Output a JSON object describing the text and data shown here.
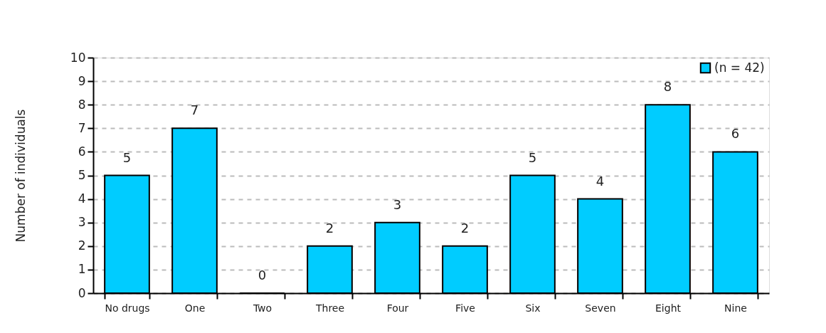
{
  "chart_data": {
    "type": "bar",
    "ylabel": "Number of individuals",
    "categories": [
      "No drugs",
      "One",
      "Two",
      "Three",
      "Four",
      "Five",
      "Six",
      "Seven",
      "Eight",
      "Nine"
    ],
    "series": [
      {
        "name": "(n = 42)",
        "color": "#00ccff",
        "values": [
          5,
          7,
          0,
          2,
          3,
          2,
          5,
          4,
          8,
          6
        ]
      }
    ],
    "ylim": [
      0,
      10
    ],
    "yticks": [
      0,
      1,
      2,
      3,
      4,
      5,
      6,
      7,
      8,
      9,
      10
    ],
    "grid": "y",
    "legend": "top right",
    "data_labels": true
  }
}
